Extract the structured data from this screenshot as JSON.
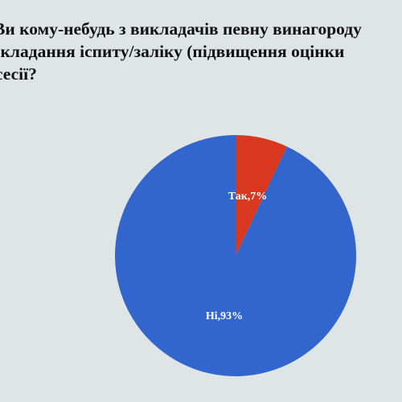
{
  "question": {
    "lines": [
      "Ви кому-небудь з викладачів певну винагороду",
      "складання іспиту/заліку (підвищення оцінки",
      "сесії?"
    ]
  },
  "chart_data": {
    "type": "pie",
    "slices": [
      {
        "label": "Так",
        "value": 7,
        "display": "Так,7%",
        "color": "#d9381e"
      },
      {
        "label": "Ні",
        "value": 93,
        "display": "Ні,93%",
        "color": "#3366cc"
      }
    ],
    "start_angle": "top",
    "direction": "clockwise",
    "legend": "none"
  }
}
